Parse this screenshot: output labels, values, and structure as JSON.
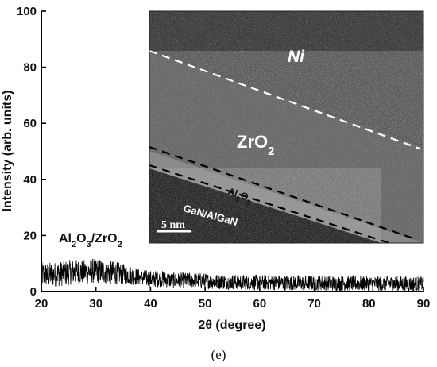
{
  "chart_data": {
    "type": "line",
    "title": "",
    "xlabel": "2θ (degree)",
    "ylabel": "Intensity (arb. units)",
    "xlim": [
      20,
      90
    ],
    "ylim": [
      0,
      100
    ],
    "x_ticks": [
      20,
      30,
      40,
      50,
      60,
      70,
      80,
      90
    ],
    "y_ticks": [
      0,
      20,
      40,
      60,
      80,
      100
    ],
    "grid": false,
    "series": [
      {
        "name": "",
        "color": "#000000",
        "description_points": {
          "x": [
            20,
            22,
            24,
            26,
            28,
            30,
            32,
            34,
            36,
            38,
            40,
            42,
            44,
            46,
            48,
            50,
            52,
            54,
            56,
            58,
            60,
            62,
            64,
            66,
            68,
            70,
            72,
            74,
            76,
            78,
            80,
            82,
            84,
            86,
            88,
            90
          ],
          "y": [
            6,
            6,
            6.5,
            7,
            7,
            7.5,
            7,
            6.5,
            6,
            5,
            4.5,
            4.5,
            4,
            4,
            4,
            3.8,
            3.5,
            3.5,
            3.4,
            3.3,
            3.2,
            3.2,
            3.1,
            3,
            3,
            3,
            3,
            2.9,
            2.9,
            2.9,
            2.8,
            2.8,
            2.8,
            2.8,
            2.7,
            2.7
          ]
        },
        "noise_amplitude": [
          9,
          9,
          9,
          9,
          9,
          9,
          9,
          8,
          7,
          6,
          6,
          6,
          5.5,
          5.5,
          5.5,
          5.5,
          5.5,
          5.5,
          5.5,
          5.5,
          5.5,
          5.5,
          5.5,
          5.5,
          5.5,
          5.5,
          5.5,
          5.5,
          5.5,
          5.5,
          5.5,
          5.5,
          5.5,
          5.5,
          5.5,
          5.5
        ]
      }
    ],
    "annotation": "Al2O3/ZrO2"
  },
  "sample_label": {
    "base1": "Al",
    "sub1": "2",
    "base2": "O",
    "sub2": "3",
    "base3": "/ZrO",
    "sub3": "2"
  },
  "inset": {
    "layer_ni": "Ni",
    "layer_zro2_base": "ZrO",
    "layer_zro2_sub": "2",
    "layer_al2o3_base1": "Al",
    "layer_al2o3_sub1": "2",
    "layer_al2o3_base2": "O",
    "layer_al2o3_sub2": "3",
    "layer_substrate": "GaN/AlGaN",
    "scale_bar": "5 nm"
  },
  "panel_label": "(e)"
}
